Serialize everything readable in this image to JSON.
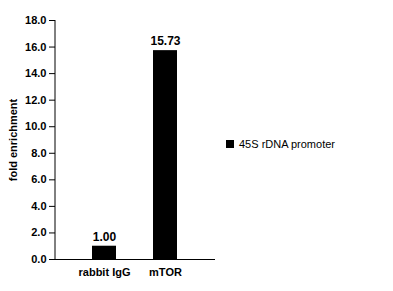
{
  "chart_data": {
    "type": "bar",
    "categories": [
      "rabbit IgG",
      "mTOR"
    ],
    "series": [
      {
        "name": "45S rDNA promoter",
        "color": "#000000",
        "values": [
          1.0,
          15.73
        ],
        "value_labels": [
          "1.00",
          "15.73"
        ]
      }
    ],
    "ylabel": "fold enrichment",
    "ylim": [
      0,
      18
    ],
    "yticks": [
      {
        "value": 0,
        "label": "0.0"
      },
      {
        "value": 2,
        "label": "2.0"
      },
      {
        "value": 4,
        "label": "4.0"
      },
      {
        "value": 6,
        "label": "6.0"
      },
      {
        "value": 8,
        "label": "8.0"
      },
      {
        "value": 10,
        "label": "10.0"
      },
      {
        "value": 12,
        "label": "12.0"
      },
      {
        "value": 14,
        "label": "14.0"
      },
      {
        "value": 16,
        "label": "16.0"
      },
      {
        "value": 18,
        "label": "18.0"
      }
    ],
    "grid": false,
    "legend": "right",
    "data_labels": true
  }
}
